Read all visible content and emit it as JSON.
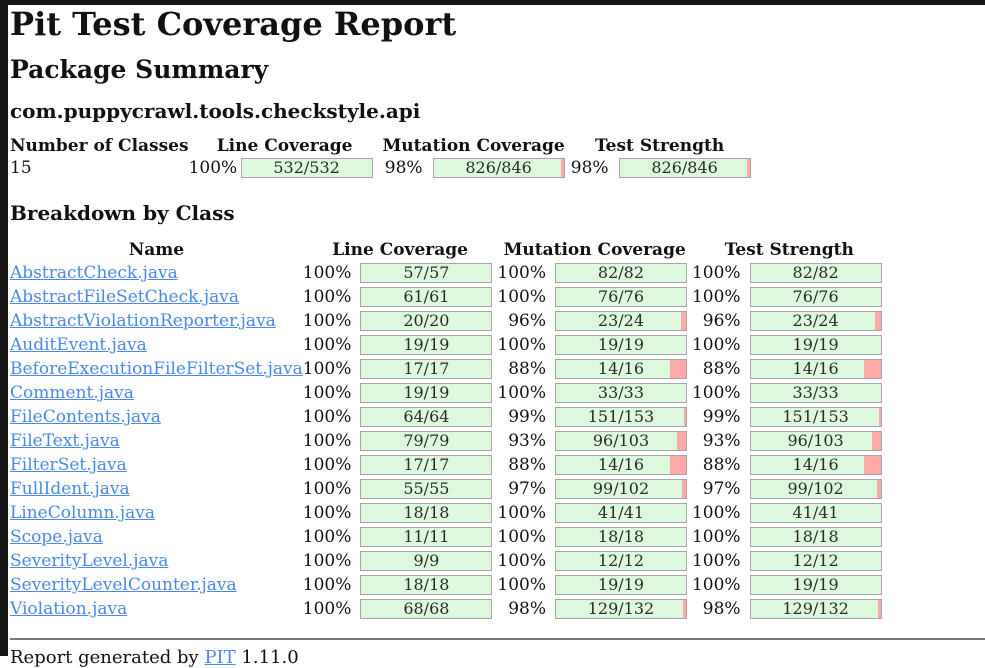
{
  "page": {
    "title": "Pit Test Coverage Report",
    "package_summary_heading": "Package Summary",
    "package_name": "com.puppycrawl.tools.checkstyle.api",
    "breakdown_heading": "Breakdown by Class",
    "footer_prefix": "Report generated by ",
    "footer_link_label": "PIT",
    "footer_suffix": " 1.11.0"
  },
  "colors": {
    "bar_covered": "#ddf8dd",
    "bar_uncovered": "#ffa9a9",
    "bar_border": "#a6a6a6",
    "link": "#4a89e8"
  },
  "summary_table": {
    "headers": [
      "Number of Classes",
      "Line Coverage",
      "Mutation Coverage",
      "Test Strength"
    ],
    "row": {
      "number_of_classes": "15",
      "line": {
        "pct": "100%",
        "label": "532/532"
      },
      "mutation": {
        "pct": "98%",
        "label": "826/846"
      },
      "strength": {
        "pct": "98%",
        "label": "826/846"
      }
    }
  },
  "breakdown_table": {
    "headers": [
      "Name",
      "Line Coverage",
      "Mutation Coverage",
      "Test Strength"
    ],
    "rows": [
      {
        "name": "AbstractCheck.java",
        "line": {
          "pct": "100%",
          "label": "57/57"
        },
        "mutation": {
          "pct": "100%",
          "label": "82/82"
        },
        "strength": {
          "pct": "100%",
          "label": "82/82"
        }
      },
      {
        "name": "AbstractFileSetCheck.java",
        "line": {
          "pct": "100%",
          "label": "61/61"
        },
        "mutation": {
          "pct": "100%",
          "label": "76/76"
        },
        "strength": {
          "pct": "100%",
          "label": "76/76"
        }
      },
      {
        "name": "AbstractViolationReporter.java",
        "line": {
          "pct": "100%",
          "label": "20/20"
        },
        "mutation": {
          "pct": "96%",
          "label": "23/24"
        },
        "strength": {
          "pct": "96%",
          "label": "23/24"
        }
      },
      {
        "name": "AuditEvent.java",
        "line": {
          "pct": "100%",
          "label": "19/19"
        },
        "mutation": {
          "pct": "100%",
          "label": "19/19"
        },
        "strength": {
          "pct": "100%",
          "label": "19/19"
        }
      },
      {
        "name": "BeforeExecutionFileFilterSet.java",
        "line": {
          "pct": "100%",
          "label": "17/17"
        },
        "mutation": {
          "pct": "88%",
          "label": "14/16"
        },
        "strength": {
          "pct": "88%",
          "label": "14/16"
        }
      },
      {
        "name": "Comment.java",
        "line": {
          "pct": "100%",
          "label": "19/19"
        },
        "mutation": {
          "pct": "100%",
          "label": "33/33"
        },
        "strength": {
          "pct": "100%",
          "label": "33/33"
        }
      },
      {
        "name": "FileContents.java",
        "line": {
          "pct": "100%",
          "label": "64/64"
        },
        "mutation": {
          "pct": "99%",
          "label": "151/153"
        },
        "strength": {
          "pct": "99%",
          "label": "151/153"
        }
      },
      {
        "name": "FileText.java",
        "line": {
          "pct": "100%",
          "label": "79/79"
        },
        "mutation": {
          "pct": "93%",
          "label": "96/103"
        },
        "strength": {
          "pct": "93%",
          "label": "96/103"
        }
      },
      {
        "name": "FilterSet.java",
        "line": {
          "pct": "100%",
          "label": "17/17"
        },
        "mutation": {
          "pct": "88%",
          "label": "14/16"
        },
        "strength": {
          "pct": "88%",
          "label": "14/16"
        }
      },
      {
        "name": "FullIdent.java",
        "line": {
          "pct": "100%",
          "label": "55/55"
        },
        "mutation": {
          "pct": "97%",
          "label": "99/102"
        },
        "strength": {
          "pct": "97%",
          "label": "99/102"
        }
      },
      {
        "name": "LineColumn.java",
        "line": {
          "pct": "100%",
          "label": "18/18"
        },
        "mutation": {
          "pct": "100%",
          "label": "41/41"
        },
        "strength": {
          "pct": "100%",
          "label": "41/41"
        }
      },
      {
        "name": "Scope.java",
        "line": {
          "pct": "100%",
          "label": "11/11"
        },
        "mutation": {
          "pct": "100%",
          "label": "18/18"
        },
        "strength": {
          "pct": "100%",
          "label": "18/18"
        }
      },
      {
        "name": "SeverityLevel.java",
        "line": {
          "pct": "100%",
          "label": "9/9"
        },
        "mutation": {
          "pct": "100%",
          "label": "12/12"
        },
        "strength": {
          "pct": "100%",
          "label": "12/12"
        }
      },
      {
        "name": "SeverityLevelCounter.java",
        "line": {
          "pct": "100%",
          "label": "18/18"
        },
        "mutation": {
          "pct": "100%",
          "label": "19/19"
        },
        "strength": {
          "pct": "100%",
          "label": "19/19"
        }
      },
      {
        "name": "Violation.java",
        "line": {
          "pct": "100%",
          "label": "68/68"
        },
        "mutation": {
          "pct": "98%",
          "label": "129/132"
        },
        "strength": {
          "pct": "98%",
          "label": "129/132"
        }
      }
    ]
  }
}
